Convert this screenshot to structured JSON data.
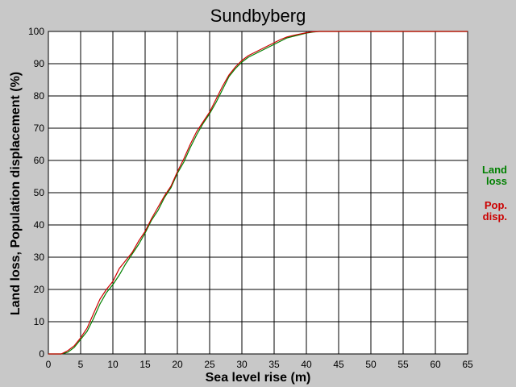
{
  "chart_data": {
    "type": "line",
    "title": "Sundbyberg",
    "xlabel": "Sea level rise (m)",
    "ylabel": "Land loss, Population displacement (%)",
    "xlim": [
      0,
      65
    ],
    "ylim": [
      0,
      100
    ],
    "x_ticks": [
      0,
      5,
      10,
      15,
      20,
      25,
      30,
      35,
      40,
      45,
      50,
      55,
      60,
      65
    ],
    "y_ticks": [
      0,
      10,
      20,
      30,
      40,
      50,
      60,
      70,
      80,
      90,
      100
    ],
    "grid": true,
    "legend_position": "right",
    "series": [
      {
        "name": "Land loss",
        "legend_lines": [
          "Land",
          "loss"
        ],
        "color": "#008000",
        "x": [
          0,
          2,
          3,
          4,
          5,
          6,
          7,
          8,
          9,
          10,
          11,
          12,
          13,
          14,
          15,
          16,
          17,
          18,
          19,
          20,
          21,
          22,
          23,
          24,
          25,
          26,
          27,
          28,
          29,
          30,
          31,
          32,
          33,
          34,
          35,
          36,
          37,
          38,
          39,
          40,
          41,
          42,
          43,
          44,
          45,
          50,
          55,
          60,
          65
        ],
        "y": [
          0,
          0,
          0.5,
          2,
          4.5,
          7,
          11,
          15.5,
          19,
          21.5,
          24.5,
          28,
          31,
          34,
          37.5,
          41.5,
          44.5,
          48.5,
          51.5,
          56,
          59.5,
          64,
          68,
          71.5,
          74.5,
          78,
          82,
          86,
          88.5,
          90.5,
          92,
          93,
          94,
          95,
          96,
          97,
          98,
          98.5,
          99,
          99.5,
          99.8,
          100,
          100,
          100,
          100,
          100,
          100,
          100,
          100
        ]
      },
      {
        "name": "Pop. disp.",
        "legend_lines": [
          "Pop.",
          "disp."
        ],
        "color": "#cc0000",
        "x": [
          0,
          2,
          3,
          4,
          5,
          6,
          7,
          8,
          9,
          10,
          11,
          12,
          13,
          14,
          15,
          16,
          17,
          18,
          19,
          20,
          21,
          22,
          23,
          24,
          25,
          26,
          27,
          28,
          29,
          30,
          31,
          32,
          33,
          34,
          35,
          36,
          37,
          38,
          39,
          40,
          41,
          42,
          43,
          44,
          45,
          50,
          55,
          60,
          65
        ],
        "y": [
          0,
          0,
          1,
          2.5,
          5,
          8,
          12.5,
          17,
          20,
          22.5,
          26.5,
          29,
          31.5,
          35,
          38,
          42,
          45.5,
          49,
          52,
          56.5,
          60.5,
          65,
          69,
          72,
          75,
          79,
          83,
          86.5,
          89,
          91,
          92.5,
          93.5,
          94.5,
          95.5,
          96.5,
          97.5,
          98.3,
          98.8,
          99.2,
          99.6,
          99.9,
          100,
          100,
          100,
          100,
          100,
          100,
          100,
          100
        ]
      }
    ]
  }
}
